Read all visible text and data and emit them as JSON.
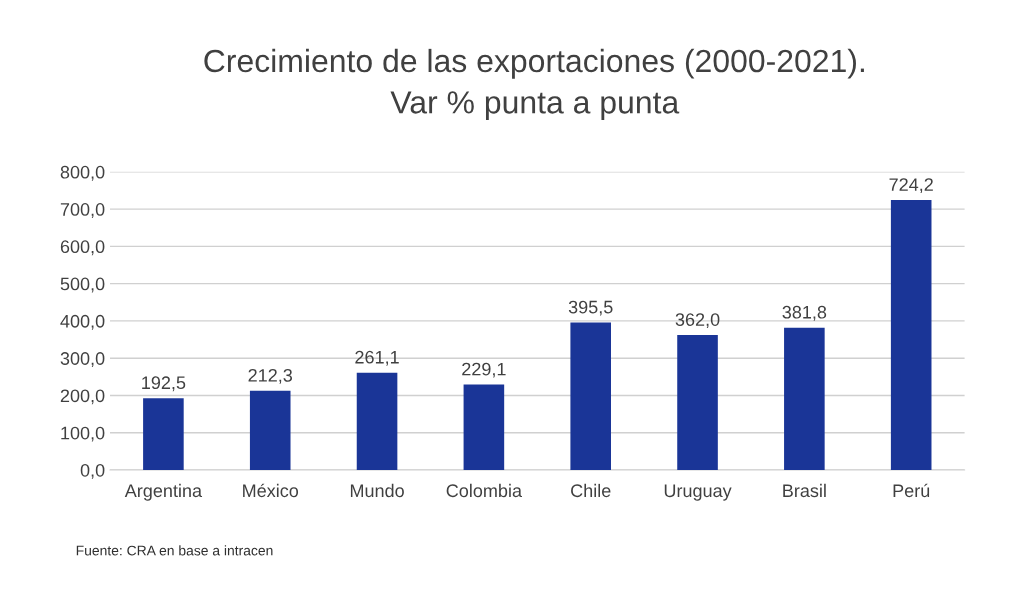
{
  "chart_data": {
    "type": "bar",
    "title": "Crecimiento de las exportaciones (2000-2021).\nVar % punta a punta",
    "categories": [
      "Argentina",
      "México",
      "Mundo",
      "Colombia",
      "Chile",
      "Uruguay",
      "Brasil",
      "Perú"
    ],
    "values": [
      192.5,
      212.3,
      261.1,
      229.1,
      395.5,
      362.0,
      381.8,
      724.2
    ],
    "value_labels": [
      "192,5",
      "212,3",
      "261,1",
      "229,1",
      "395,5",
      "362,0",
      "381,8",
      "724,2"
    ],
    "color": "#1a3597",
    "ylim": [
      0,
      800
    ],
    "yticks": [
      {
        "value": 0,
        "label": "0,0"
      },
      {
        "value": 100,
        "label": "100,0"
      },
      {
        "value": 200,
        "label": "200,0"
      },
      {
        "value": 300,
        "label": "300,0"
      },
      {
        "value": 400,
        "label": "400,0"
      },
      {
        "value": 500,
        "label": "500,0"
      },
      {
        "value": 600,
        "label": "600,0"
      },
      {
        "value": 700,
        "label": "700,0"
      },
      {
        "value": 800,
        "label": "800,0"
      }
    ],
    "grid": "y",
    "annotations": [
      "Fuente: CRA en base a intracen"
    ]
  }
}
